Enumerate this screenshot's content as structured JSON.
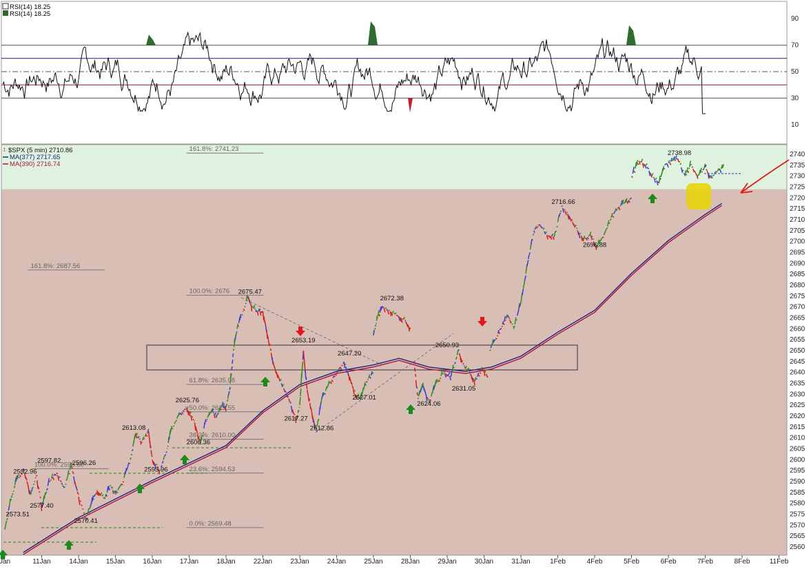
{
  "chart_data": [
    {
      "type": "line",
      "name": "RSI",
      "legend": [
        "RSI(14) 18.25",
        "RSI(14) 18.25"
      ],
      "ylim": [
        0,
        100
      ],
      "yticks": [
        90,
        70,
        50,
        30,
        10
      ],
      "reference_lines": [
        {
          "y": 70,
          "color": "#555555",
          "style": "solid"
        },
        {
          "y": 60,
          "color": "#1a237e",
          "style": "solid"
        },
        {
          "y": 50,
          "color": "#555555",
          "style": "dashdot"
        },
        {
          "y": 40,
          "color": "#8b1a3a",
          "style": "solid"
        },
        {
          "y": 30,
          "color": "#555555",
          "style": "solid"
        }
      ],
      "last_value": 18.25
    },
    {
      "type": "line",
      "name": "price",
      "legend": [
        "$SPX (5 min) 2710.86",
        "MA(377) 2717.65",
        "MA(390) 2716.74"
      ],
      "legend_colors": [
        "#111111",
        "#1a237e",
        "#b0103a"
      ],
      "ylim": [
        2557,
        2747
      ],
      "yticks": [
        2560,
        2565,
        2570,
        2575,
        2580,
        2585,
        2590,
        2595,
        2600,
        2605,
        2610,
        2615,
        2620,
        2625,
        2630,
        2635,
        2640,
        2645,
        2650,
        2655,
        2660,
        2665,
        2670,
        2675,
        2680,
        2685,
        2690,
        2695,
        2700,
        2705,
        2710,
        2715,
        2720,
        2725,
        2730,
        2735,
        2740
      ],
      "x_categories": [
        "Jan",
        "11Jan",
        "14Jan",
        "15Jan",
        "16Jan",
        "17Jan",
        "18Jan",
        "22Jan",
        "23Jan",
        "24Jan",
        "25Jan",
        "28Jan",
        "29Jan",
        "30Jan",
        "31Jan",
        "1Feb",
        "4Feb",
        "5Feb",
        "6Feb",
        "7Feb",
        "8Feb",
        "11Feb"
      ],
      "price_path": [
        [
          0,
          2568
        ],
        [
          0.15,
          2581
        ],
        [
          0.3,
          2590
        ],
        [
          0.5,
          2596
        ],
        [
          0.7,
          2584
        ],
        [
          0.85,
          2593
        ],
        [
          1.0,
          2578
        ],
        [
          1.2,
          2590
        ],
        [
          1.4,
          2594
        ],
        [
          1.6,
          2587
        ],
        [
          1.8,
          2597
        ],
        [
          2.0,
          2583
        ],
        [
          2.2,
          2572
        ],
        [
          2.35,
          2580
        ],
        [
          2.5,
          2586
        ],
        [
          2.7,
          2582
        ],
        [
          2.85,
          2588
        ],
        [
          3.0,
          2584
        ],
        [
          3.2,
          2590
        ],
        [
          3.4,
          2600
        ],
        [
          3.55,
          2612
        ],
        [
          3.7,
          2608
        ],
        [
          3.9,
          2613
        ],
        [
          4.0,
          2600
        ],
        [
          4.2,
          2595
        ],
        [
          4.4,
          2605
        ],
        [
          4.5,
          2613
        ],
        [
          4.7,
          2620
        ],
        [
          4.9,
          2624
        ],
        [
          5.0,
          2622
        ],
        [
          5.15,
          2617
        ],
        [
          5.3,
          2607
        ],
        [
          5.45,
          2618
        ],
        [
          5.6,
          2622
        ],
        [
          5.75,
          2620
        ],
        [
          5.9,
          2625
        ],
        [
          6.0,
          2624
        ],
        [
          6.1,
          2632
        ],
        [
          6.2,
          2650
        ],
        [
          6.3,
          2660
        ],
        [
          6.45,
          2668
        ],
        [
          6.6,
          2675
        ],
        [
          6.7,
          2670
        ],
        [
          6.85,
          2668
        ],
        [
          7.0,
          2668
        ],
        [
          7.15,
          2655
        ],
        [
          7.3,
          2643
        ],
        [
          7.5,
          2635
        ],
        [
          7.7,
          2628
        ],
        [
          7.9,
          2618
        ],
        [
          8.0,
          2625
        ],
        [
          8.1,
          2650
        ],
        [
          8.2,
          2632
        ],
        [
          8.35,
          2620
        ],
        [
          8.45,
          2613
        ],
        [
          8.6,
          2628
        ],
        [
          8.8,
          2635
        ],
        [
          9.0,
          2640
        ],
        [
          9.2,
          2645
        ],
        [
          9.35,
          2638
        ],
        [
          9.5,
          2630
        ],
        [
          9.65,
          2628
        ],
        [
          9.8,
          2636
        ],
        [
          10.0,
          2640
        ]
      ],
      "price_path_2": [
        [
          10.0,
          2657
        ],
        [
          10.1,
          2665
        ],
        [
          10.25,
          2670
        ],
        [
          10.45,
          2668
        ],
        [
          10.65,
          2666
        ],
        [
          10.85,
          2664
        ],
        [
          11.0,
          2660
        ]
      ],
      "price_path_3": [
        [
          11.1,
          2645
        ],
        [
          11.2,
          2628
        ],
        [
          11.35,
          2634
        ],
        [
          11.5,
          2626
        ],
        [
          11.7,
          2635
        ],
        [
          11.9,
          2640
        ],
        [
          12.1,
          2638
        ],
        [
          12.3,
          2650
        ],
        [
          12.45,
          2643
        ],
        [
          12.6,
          2640
        ],
        [
          12.75,
          2636
        ],
        [
          12.95,
          2642
        ],
        [
          13.1,
          2638
        ]
      ],
      "price_path_4": [
        [
          13.15,
          2650
        ],
        [
          13.35,
          2657
        ],
        [
          13.5,
          2662
        ],
        [
          13.65,
          2666
        ],
        [
          13.8,
          2660
        ],
        [
          14.0,
          2672
        ],
        [
          14.2,
          2692
        ],
        [
          14.35,
          2705
        ],
        [
          14.5,
          2708
        ],
        [
          14.7,
          2703
        ],
        [
          14.9,
          2702
        ],
        [
          15.1,
          2716
        ],
        [
          15.3,
          2712
        ],
        [
          15.5,
          2706
        ],
        [
          15.7,
          2701
        ],
        [
          15.9,
          2703
        ],
        [
          16.05,
          2697
        ],
        [
          16.25,
          2703
        ],
        [
          16.45,
          2711
        ],
        [
          16.65,
          2716
        ],
        [
          16.85,
          2718
        ],
        [
          17.0,
          2720
        ]
      ],
      "price_path_5": [
        [
          17.0,
          2730
        ],
        [
          17.2,
          2737
        ],
        [
          17.4,
          2735
        ],
        [
          17.55,
          2730
        ],
        [
          17.75,
          2727
        ],
        [
          17.9,
          2735
        ],
        [
          18.1,
          2737
        ],
        [
          18.25,
          2738
        ],
        [
          18.45,
          2730
        ],
        [
          18.6,
          2735
        ],
        [
          18.8,
          2730
        ],
        [
          19.0,
          2734
        ],
        [
          19.15,
          2729
        ],
        [
          19.3,
          2732
        ],
        [
          19.5,
          2734
        ]
      ],
      "ma_path": [
        [
          0.5,
          2557
        ],
        [
          2.0,
          2573
        ],
        [
          4.0,
          2590
        ],
        [
          6.0,
          2606
        ],
        [
          7.0,
          2622
        ],
        [
          8.0,
          2634
        ],
        [
          9.0,
          2640
        ],
        [
          10.0,
          2643
        ],
        [
          10.7,
          2646
        ],
        [
          11.5,
          2642
        ],
        [
          12.5,
          2640
        ],
        [
          13.2,
          2642
        ],
        [
          14.0,
          2647
        ],
        [
          15.0,
          2658
        ],
        [
          16.0,
          2668
        ],
        [
          17.0,
          2685
        ],
        [
          18.0,
          2700
        ],
        [
          19.0,
          2712
        ],
        [
          19.45,
          2717
        ]
      ],
      "annotations": [
        {
          "x": 1.2,
          "y": 2598,
          "text": "2597.82"
        },
        {
          "x": 0.55,
          "y": 2593,
          "text": "2592.96"
        },
        {
          "x": 2.15,
          "y": 2597,
          "text": "2596.26"
        },
        {
          "x": 1.0,
          "y": 2577.4,
          "text": "2577.40"
        },
        {
          "x": 0.35,
          "y": 2573.5,
          "text": "2573.51"
        },
        {
          "x": 2.2,
          "y": 2570.4,
          "text": "2570.41"
        },
        {
          "x": 3.5,
          "y": 2613,
          "text": "2613.08"
        },
        {
          "x": 4.1,
          "y": 2594,
          "text": "2593.96"
        },
        {
          "x": 4.95,
          "y": 2625.7,
          "text": "2625.76"
        },
        {
          "x": 5.25,
          "y": 2606.4,
          "text": "2606.36"
        },
        {
          "x": 6.65,
          "y": 2675.5,
          "text": "2675.47"
        },
        {
          "x": 8.1,
          "y": 2653.2,
          "text": "2653.19"
        },
        {
          "x": 9.35,
          "y": 2647.2,
          "text": "2647.20"
        },
        {
          "x": 7.9,
          "y": 2617.3,
          "text": "2617.27"
        },
        {
          "x": 8.6,
          "y": 2612.9,
          "text": "2612.86"
        },
        {
          "x": 9.75,
          "y": 2627,
          "text": "2627.01"
        },
        {
          "x": 10.5,
          "y": 2672.4,
          "text": "2672.38"
        },
        {
          "x": 12.0,
          "y": 2650.9,
          "text": "2650.93"
        },
        {
          "x": 11.5,
          "y": 2624.1,
          "text": "2624.06"
        },
        {
          "x": 12.45,
          "y": 2631,
          "text": "2631.05"
        },
        {
          "x": 15.15,
          "y": 2716.7,
          "text": "2716.66"
        },
        {
          "x": 16.0,
          "y": 2696.9,
          "text": "2696.88"
        },
        {
          "x": 18.3,
          "y": 2739,
          "text": "2738.98"
        }
      ],
      "fib_labels": [
        {
          "x": 5.3,
          "y": 2741.2,
          "text": "161.8%: 2741.23"
        },
        {
          "x": 1.0,
          "y": 2687.6,
          "text": "161.8%: 2687.56"
        },
        {
          "x": 5.3,
          "y": 2676,
          "text": "100.0%: 2676"
        },
        {
          "x": 5.3,
          "y": 2635.1,
          "text": "61.8%: 2635.08"
        },
        {
          "x": 5.3,
          "y": 2622.6,
          "text": "50.0%: 2622.55"
        },
        {
          "x": 5.3,
          "y": 2610,
          "text": "38.2%: 2610.00"
        },
        {
          "x": 1.1,
          "y": 2596.5,
          "text": "100.0%: 2596.50"
        },
        {
          "x": 5.3,
          "y": 2594.5,
          "text": "23.6%: 2594.53"
        },
        {
          "x": 5.3,
          "y": 2569.5,
          "text": "0.0%: 2569.48"
        }
      ],
      "last_price": 2710.86,
      "zones": [
        {
          "from": 2724,
          "to": 2747,
          "color": "#dff2df"
        },
        {
          "from": 2557,
          "to": 2724,
          "color": "#d8beb4"
        }
      ],
      "colors": {
        "up": "#2e8b1e",
        "down": "#d21e1e",
        "neutral": "#3b3bd6",
        "ma1": "#1a237e",
        "ma2": "#b0103a",
        "arrow_up": "#1b8a1b",
        "arrow_down": "#e01a1a"
      }
    }
  ]
}
